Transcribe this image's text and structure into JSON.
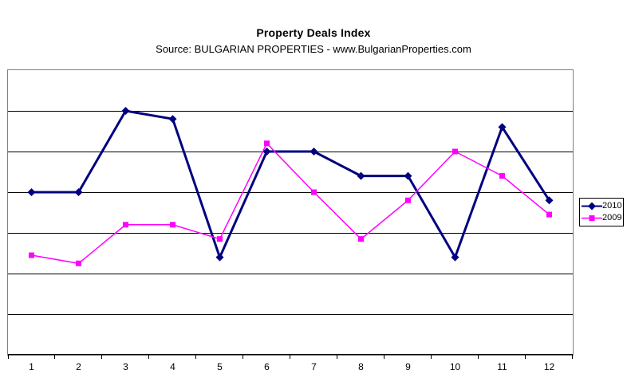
{
  "chart_data": {
    "type": "line",
    "title": "Property Deals Index",
    "subtitle": "Source: BULGARIAN PROPERTIES - www.BulgarianProperties.com",
    "categories": [
      "1",
      "2",
      "3",
      "4",
      "5",
      "6",
      "7",
      "8",
      "9",
      "10",
      "11",
      "12"
    ],
    "xlabel": "",
    "ylabel": "",
    "ylim": [
      0,
      7
    ],
    "y_gridline_step": 1,
    "y_tick_labels_visible": false,
    "grid": "horizontal",
    "legend_position": "right",
    "series": [
      {
        "name": "2010",
        "color": "#000080",
        "marker": "diamond",
        "line_width": 3,
        "values": [
          4.0,
          4.0,
          6.0,
          5.8,
          2.4,
          5.0,
          5.0,
          4.4,
          4.4,
          2.4,
          5.6,
          3.8
        ]
      },
      {
        "name": "2009",
        "color": "#FF00FF",
        "marker": "square",
        "line_width": 1.5,
        "values": [
          2.45,
          2.25,
          3.2,
          3.2,
          2.85,
          5.2,
          4.0,
          2.85,
          3.8,
          5.0,
          4.4,
          3.45
        ]
      }
    ],
    "colors": {
      "plot_border": "#808080",
      "gridline": "#000000",
      "axis": "#000000",
      "background": "#FFFFFF",
      "legend_border": "#000000",
      "text": "#000000"
    }
  }
}
